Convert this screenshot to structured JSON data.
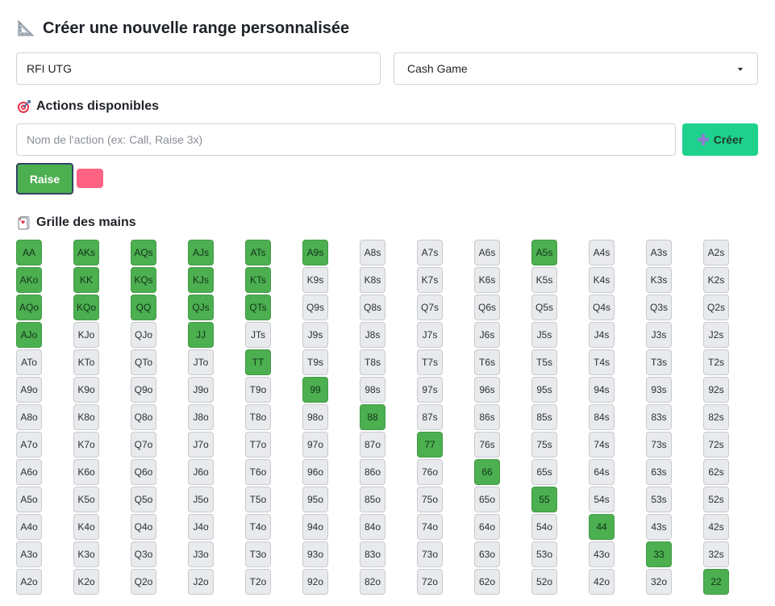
{
  "header": {
    "title": "Créer une nouvelle range personnalisée",
    "icon": "triangle-ruler-icon"
  },
  "form": {
    "range_name": "RFI UTG",
    "game_type": "Cash Game"
  },
  "actions_section": {
    "title": "Actions disponibles",
    "icon": "target-icon",
    "input_placeholder": "Nom de l'action (ex: Call, Raise 3x)",
    "create_label": "Créer",
    "actions": [
      {
        "label": "Raise",
        "color": "#4caf50"
      }
    ],
    "pending_color": "#ff6383"
  },
  "grid_section": {
    "title": "Grille des mains",
    "icon": "playing-card-icon",
    "selected_color": "#4caf50",
    "rows": [
      [
        "AA",
        "AKs",
        "AQs",
        "AJs",
        "ATs",
        "A9s",
        "A8s",
        "A7s",
        "A6s",
        "A5s",
        "A4s",
        "A3s",
        "A2s"
      ],
      [
        "AKo",
        "KK",
        "KQs",
        "KJs",
        "KTs",
        "K9s",
        "K8s",
        "K7s",
        "K6s",
        "K5s",
        "K4s",
        "K3s",
        "K2s"
      ],
      [
        "AQo",
        "KQo",
        "QQ",
        "QJs",
        "QTs",
        "Q9s",
        "Q8s",
        "Q7s",
        "Q6s",
        "Q5s",
        "Q4s",
        "Q3s",
        "Q2s"
      ],
      [
        "AJo",
        "KJo",
        "QJo",
        "JJ",
        "JTs",
        "J9s",
        "J8s",
        "J7s",
        "J6s",
        "J5s",
        "J4s",
        "J3s",
        "J2s"
      ],
      [
        "ATo",
        "KTo",
        "QTo",
        "JTo",
        "TT",
        "T9s",
        "T8s",
        "T7s",
        "T6s",
        "T5s",
        "T4s",
        "T3s",
        "T2s"
      ],
      [
        "A9o",
        "K9o",
        "Q9o",
        "J9o",
        "T9o",
        "99",
        "98s",
        "97s",
        "96s",
        "95s",
        "94s",
        "93s",
        "92s"
      ],
      [
        "A8o",
        "K8o",
        "Q8o",
        "J8o",
        "T8o",
        "98o",
        "88",
        "87s",
        "86s",
        "85s",
        "84s",
        "83s",
        "82s"
      ],
      [
        "A7o",
        "K7o",
        "Q7o",
        "J7o",
        "T7o",
        "97o",
        "87o",
        "77",
        "76s",
        "75s",
        "74s",
        "73s",
        "72s"
      ],
      [
        "A6o",
        "K6o",
        "Q6o",
        "J6o",
        "T6o",
        "96o",
        "86o",
        "76o",
        "66",
        "65s",
        "64s",
        "63s",
        "62s"
      ],
      [
        "A5o",
        "K5o",
        "Q5o",
        "J5o",
        "T5o",
        "95o",
        "85o",
        "75o",
        "65o",
        "55",
        "54s",
        "53s",
        "52s"
      ],
      [
        "A4o",
        "K4o",
        "Q4o",
        "J4o",
        "T4o",
        "94o",
        "84o",
        "74o",
        "64o",
        "54o",
        "44",
        "43s",
        "42s"
      ],
      [
        "A3o",
        "K3o",
        "Q3o",
        "J3o",
        "T3o",
        "93o",
        "83o",
        "73o",
        "63o",
        "53o",
        "43o",
        "33",
        "32s"
      ],
      [
        "A2o",
        "K2o",
        "Q2o",
        "J2o",
        "T2o",
        "92o",
        "82o",
        "72o",
        "62o",
        "52o",
        "42o",
        "32o",
        "22"
      ]
    ],
    "selected": [
      "AA",
      "AKs",
      "AQs",
      "AJs",
      "ATs",
      "A9s",
      "A5s",
      "AKo",
      "KK",
      "KQs",
      "KJs",
      "KTs",
      "AQo",
      "KQo",
      "QQ",
      "QJs",
      "QTs",
      "AJo",
      "JJ",
      "TT",
      "99",
      "88",
      "77",
      "66",
      "55",
      "44",
      "33",
      "22"
    ]
  }
}
